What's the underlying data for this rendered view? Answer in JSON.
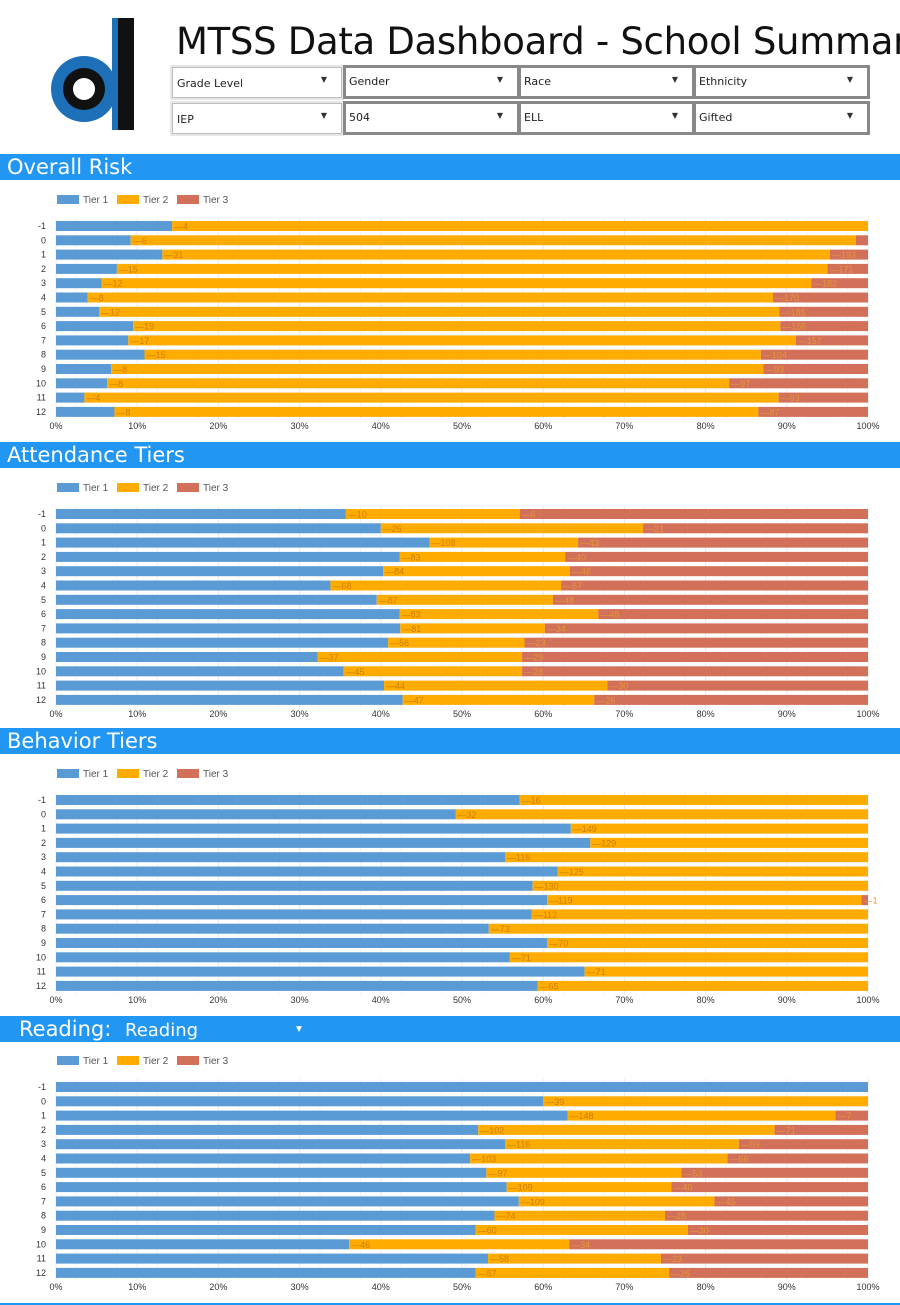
{
  "header": {
    "title": "MTSS Data Dashboard - School Summary",
    "logo_text": "cl"
  },
  "filters": [
    {
      "label": "Grade Level"
    },
    {
      "label": "Gender"
    },
    {
      "label": "Race"
    },
    {
      "label": "Ethnicity"
    },
    {
      "label": "IEP"
    },
    {
      "label": "504"
    },
    {
      "label": "ELL"
    },
    {
      "label": "Gifted"
    }
  ],
  "colors": {
    "accent": "#2196f3",
    "tier1": "#5b9bd5",
    "tier2": "#ffab00",
    "tier3": "#d3705a"
  },
  "sections": {
    "overall_risk": {
      "title": "Overall Risk"
    },
    "attendance": {
      "title": "Attendance Tiers"
    },
    "behavior": {
      "title": "Behavior Tiers"
    },
    "reading": {
      "title": "Reading:",
      "selector": "Reading"
    }
  },
  "chart_data": [
    {
      "type": "bar",
      "orientation": "horizontal",
      "stacked": "percent",
      "title": "Overall Risk",
      "legend": [
        "Tier 1",
        "Tier 2",
        "Tier 3"
      ],
      "categories": [
        "-1",
        "0",
        "1",
        "2",
        "3",
        "4",
        "5",
        "6",
        "7",
        "8",
        "9",
        "10",
        "11",
        "12"
      ],
      "x_ticks": [
        "0%",
        "10%",
        "20%",
        "30%",
        "40%",
        "50%",
        "60%",
        "70%",
        "80%",
        "90%",
        "100%"
      ],
      "series": [
        {
          "name": "Tier 1",
          "values": [
            14.3,
            9.2,
            13.1,
            7.5,
            5.6,
            3.9,
            5.3,
            9.5,
            8.9,
            10.9,
            6.8,
            6.3,
            3.5,
            7.2
          ]
        },
        {
          "name": "Tier 2",
          "values": [
            85.7,
            89.3,
            82.2,
            87.5,
            87.4,
            84.4,
            83.8,
            79.7,
            82.2,
            75.9,
            80.3,
            76.6,
            85.5,
            79.3
          ]
        },
        {
          "name": "Tier 3",
          "values": [
            0.0,
            1.5,
            4.7,
            5.0,
            7.0,
            11.7,
            10.9,
            10.8,
            8.9,
            13.2,
            12.9,
            17.1,
            11.0,
            13.5
          ]
        }
      ],
      "labels": [
        [
          "",
          "4",
          ""
        ],
        [
          "",
          "6",
          ""
        ],
        [
          "",
          "31",
          "193"
        ],
        [
          "",
          "15",
          "171"
        ],
        [
          "",
          "12",
          "182"
        ],
        [
          "",
          "8",
          "170"
        ],
        [
          "",
          "12",
          "185"
        ],
        [
          "",
          "19",
          "156"
        ],
        [
          "",
          "17",
          "157"
        ],
        [
          "",
          "15",
          "104"
        ],
        [
          "",
          "8",
          "93"
        ],
        [
          "",
          "8",
          "97"
        ],
        [
          "",
          "4",
          "93"
        ],
        [
          "",
          "8",
          "87"
        ]
      ]
    },
    {
      "type": "bar",
      "orientation": "horizontal",
      "stacked": "percent",
      "title": "Attendance Tiers",
      "legend": [
        "Tier 1",
        "Tier 2",
        "Tier 3"
      ],
      "categories": [
        "-1",
        "0",
        "1",
        "2",
        "3",
        "4",
        "5",
        "6",
        "7",
        "8",
        "9",
        "10",
        "11",
        "12"
      ],
      "x_ticks": [
        "0%",
        "10%",
        "20%",
        "30%",
        "40%",
        "50%",
        "60%",
        "70%",
        "80%",
        "90%",
        "100%"
      ],
      "series": [
        {
          "name": "Tier 1",
          "values": [
            35.7,
            40.0,
            46.0,
            42.3,
            40.3,
            33.8,
            39.5,
            42.3,
            42.4,
            40.9,
            32.2,
            35.4,
            40.4,
            42.7
          ]
        },
        {
          "name": "Tier 2",
          "values": [
            21.4,
            32.3,
            18.3,
            20.4,
            23.0,
            28.4,
            21.7,
            24.5,
            17.8,
            16.8,
            25.2,
            22.0,
            27.5,
            23.6
          ]
        },
        {
          "name": "Tier 3",
          "values": [
            42.9,
            27.7,
            35.7,
            37.3,
            36.7,
            37.8,
            38.8,
            33.2,
            39.8,
            42.3,
            42.6,
            42.6,
            32.1,
            33.7
          ]
        }
      ],
      "labels": [
        [
          "",
          "10",
          "6"
        ],
        [
          "",
          "26",
          "21"
        ],
        [
          "",
          "108",
          "43"
        ],
        [
          "",
          "83",
          "40"
        ],
        [
          "",
          "84",
          "48"
        ],
        [
          "",
          "68",
          "57"
        ],
        [
          "",
          "87",
          "48"
        ],
        [
          "",
          "83",
          "48"
        ],
        [
          "",
          "81",
          "34"
        ],
        [
          "",
          "56",
          "23"
        ],
        [
          "",
          "37",
          "29"
        ],
        [
          "",
          "45",
          "28"
        ],
        [
          "",
          "44",
          "30"
        ],
        [
          "",
          "47",
          "26"
        ]
      ]
    },
    {
      "type": "bar",
      "orientation": "horizontal",
      "stacked": "percent",
      "title": "Behavior Tiers",
      "legend": [
        "Tier 1",
        "Tier 2",
        "Tier 3"
      ],
      "categories": [
        "-1",
        "0",
        "1",
        "2",
        "3",
        "4",
        "5",
        "6",
        "7",
        "8",
        "9",
        "10",
        "11",
        "12"
      ],
      "x_ticks": [
        "0%",
        "10%",
        "20%",
        "30%",
        "40%",
        "50%",
        "60%",
        "70%",
        "80%",
        "90%",
        "100%"
      ],
      "series": [
        {
          "name": "Tier 1",
          "values": [
            57.1,
            49.2,
            63.4,
            65.8,
            55.3,
            61.8,
            58.7,
            60.5,
            58.6,
            53.3,
            60.5,
            55.9,
            65.1,
            59.3
          ]
        },
        {
          "name": "Tier 2",
          "values": [
            42.9,
            50.8,
            36.6,
            34.2,
            44.7,
            38.2,
            41.3,
            38.7,
            41.4,
            46.7,
            39.5,
            44.1,
            34.9,
            40.7
          ]
        },
        {
          "name": "Tier 3",
          "values": [
            0,
            0,
            0,
            0,
            0,
            0,
            0,
            0.8,
            0,
            0,
            0,
            0,
            0,
            0
          ]
        }
      ],
      "labels": [
        [
          "",
          "16",
          ""
        ],
        [
          "",
          "32",
          ""
        ],
        [
          "",
          "149",
          ""
        ],
        [
          "",
          "129",
          ""
        ],
        [
          "",
          "116",
          ""
        ],
        [
          "",
          "125",
          ""
        ],
        [
          "",
          "130",
          ""
        ],
        [
          "",
          "119",
          "1"
        ],
        [
          "",
          "112",
          ""
        ],
        [
          "",
          "73",
          ""
        ],
        [
          "",
          "70",
          ""
        ],
        [
          "",
          "71",
          ""
        ],
        [
          "",
          "71",
          ""
        ],
        [
          "",
          "65",
          ""
        ]
      ]
    },
    {
      "type": "bar",
      "orientation": "horizontal",
      "stacked": "percent",
      "title": "Reading: Reading",
      "legend": [
        "Tier 1",
        "Tier 2",
        "Tier 3"
      ],
      "categories": [
        "-1",
        "0",
        "1",
        "2",
        "3",
        "4",
        "5",
        "6",
        "7",
        "8",
        "9",
        "10",
        "11",
        "12"
      ],
      "x_ticks": [
        "0%",
        "10%",
        "20%",
        "30%",
        "40%",
        "50%",
        "60%",
        "70%",
        "80%",
        "90%",
        "100%"
      ],
      "series": [
        {
          "name": "Tier 1",
          "values": [
            100.0,
            60.0,
            63.0,
            52.0,
            55.3,
            51.0,
            53.0,
            55.5,
            57.0,
            54.0,
            51.7,
            36.1,
            53.2,
            51.7
          ]
        },
        {
          "name": "Tier 2",
          "values": [
            0.0,
            40.0,
            33.0,
            36.5,
            28.8,
            31.7,
            24.0,
            20.3,
            24.1,
            21.0,
            26.1,
            27.1,
            21.3,
            23.8
          ]
        },
        {
          "name": "Tier 3",
          "values": [
            0.0,
            0.0,
            4.0,
            11.5,
            15.9,
            17.3,
            23.0,
            24.2,
            18.9,
            25.0,
            22.2,
            36.8,
            25.5,
            24.5
          ]
        }
      ],
      "labels": [
        [
          "",
          "",
          ""
        ],
        [
          "",
          "39",
          ""
        ],
        [
          "",
          "148",
          "7"
        ],
        [
          "",
          "102",
          "71"
        ],
        [
          "",
          "116",
          "59"
        ],
        [
          "",
          "103",
          "66"
        ],
        [
          "",
          "97",
          "53"
        ],
        [
          "",
          "109",
          "40"
        ],
        [
          "",
          "109",
          "45"
        ],
        [
          "",
          "74",
          "28"
        ],
        [
          "",
          "60",
          "30"
        ],
        [
          "",
          "46",
          "34"
        ],
        [
          "",
          "58",
          "23"
        ],
        [
          "",
          "57",
          "26"
        ]
      ]
    }
  ]
}
